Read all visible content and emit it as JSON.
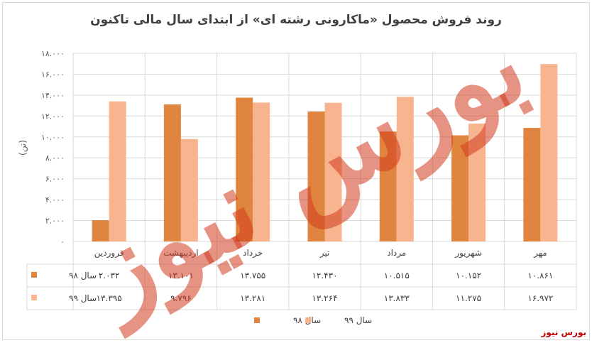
{
  "title": "روند فروش محصول «ماکارونی رشته ای» از ابتدای سال مالی تاکنون",
  "brand": "بورس نیوز",
  "chart_data": {
    "type": "bar",
    "categories": [
      "فروردین",
      "اردیبهشت",
      "خرداد",
      "تیر",
      "مرداد",
      "شهریور",
      "مهر"
    ],
    "series": [
      {
        "name": "سال ۹۸",
        "color": "#e0853f",
        "values": [
          2032,
          13101,
          13755,
          12430,
          10515,
          10152,
          10861
        ],
        "labels": [
          "۲.۰۳۲",
          "۱۳.۱۰۱",
          "۱۳.۷۵۵",
          "۱۲.۴۳۰",
          "۱۰.۵۱۵",
          "۱۰.۱۵۲",
          "۱۰.۸۶۱"
        ]
      },
      {
        "name": "سال ۹۹",
        "color": "#f7b48e",
        "values": [
          13395,
          9796,
          13281,
          13264,
          13833,
          11275,
          16972
        ],
        "labels": [
          "۱۳.۳۹۵",
          "۹.۷۹۶",
          "۱۳.۲۸۱",
          "۱۳.۲۶۴",
          "۱۳.۸۳۳",
          "۱۱.۲۷۵",
          "۱۶.۹۷۲"
        ]
      }
    ],
    "ylabel": "(تن)",
    "ylim": [
      0,
      18000
    ],
    "yticks": [
      0,
      2000,
      4000,
      6000,
      8000,
      10000,
      12000,
      14000,
      16000,
      18000
    ],
    "ytick_labels": [
      "۰",
      "۲.۰۰۰",
      "۴.۰۰۰",
      "۶.۰۰۰",
      "۸.۰۰۰",
      "۱۰.۰۰۰",
      "۱۲.۰۰۰",
      "۱۴.۰۰۰",
      "۱۶.۰۰۰",
      "۱۸.۰۰۰"
    ],
    "grid": true,
    "legend": "bottom",
    "data_table": true
  }
}
